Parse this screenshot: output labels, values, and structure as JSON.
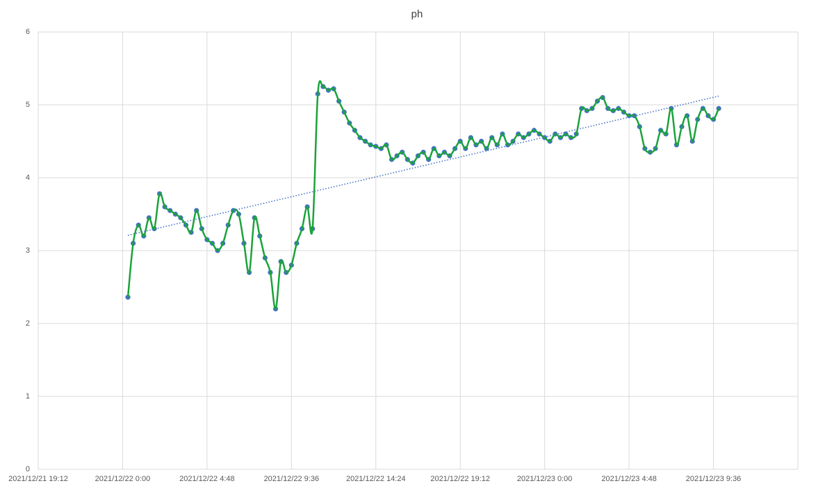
{
  "chart_data": {
    "type": "scatter",
    "title": "ph",
    "x": [
      44552.0125,
      44552.025,
      44552.0375,
      44552.05,
      44552.0625,
      44552.075,
      44552.0875,
      44552.1,
      44552.1125,
      44552.125,
      44552.1375,
      44552.15,
      44552.1625,
      44552.175,
      44552.1875,
      44552.2,
      44552.2125,
      44552.225,
      44552.2375,
      44552.25,
      44552.2625,
      44552.275,
      44552.2875,
      44552.3,
      44552.3125,
      44552.325,
      44552.3375,
      44552.35,
      44552.3625,
      44552.375,
      44552.3875,
      44552.4,
      44552.4125,
      44552.425,
      44552.4375,
      44552.45,
      44552.4625,
      44552.475,
      44552.4875,
      44552.5,
      44552.5125,
      44552.525,
      44552.5375,
      44552.55,
      44552.5625,
      44552.575,
      44552.5875,
      44552.6,
      44552.6125,
      44552.625,
      44552.6375,
      44552.65,
      44552.6625,
      44552.675,
      44552.6875,
      44552.7,
      44552.7125,
      44552.725,
      44552.7375,
      44552.75,
      44552.7625,
      44552.775,
      44552.7875,
      44552.8,
      44552.8125,
      44552.825,
      44552.8375,
      44552.85,
      44552.8625,
      44552.875,
      44552.8875,
      44552.9,
      44552.9125,
      44552.925,
      44552.9375,
      44552.95,
      44552.9625,
      44552.975,
      44552.9875,
      44553,
      44553.0125,
      44553.025,
      44553.0375,
      44553.05,
      44553.0625,
      44553.075,
      44553.0875,
      44553.1,
      44553.1125,
      44553.125,
      44553.1375,
      44553.15,
      44553.1625,
      44553.175,
      44553.1875,
      44553.2,
      44553.2125,
      44553.225,
      44553.2375,
      44553.25,
      44553.2625,
      44553.275,
      44553.2875,
      44553.3,
      44553.3125,
      44553.325,
      44553.3375,
      44553.35,
      44553.3625,
      44553.375,
      44553.3875,
      44553.4,
      44553.4125
    ],
    "series": [
      {
        "name": "ph",
        "color": "#4472c4",
        "line_color": "#1aa33a",
        "values": [
          2.36,
          3.1,
          3.35,
          3.2,
          3.45,
          3.3,
          3.78,
          3.6,
          3.55,
          3.5,
          3.45,
          3.35,
          3.25,
          3.55,
          3.3,
          3.15,
          3.1,
          3.0,
          3.1,
          3.35,
          3.55,
          3.5,
          3.1,
          2.7,
          3.45,
          3.2,
          2.9,
          2.7,
          2.2,
          2.85,
          2.7,
          2.8,
          3.1,
          3.3,
          3.6,
          3.3,
          5.15,
          5.25,
          5.2,
          5.22,
          5.05,
          4.9,
          4.75,
          4.65,
          4.55,
          4.5,
          4.45,
          4.43,
          4.4,
          4.45,
          4.25,
          4.3,
          4.35,
          4.25,
          4.2,
          4.3,
          4.35,
          4.25,
          4.4,
          4.3,
          4.35,
          4.3,
          4.4,
          4.5,
          4.4,
          4.55,
          4.45,
          4.5,
          4.4,
          4.55,
          4.45,
          4.6,
          4.45,
          4.5,
          4.6,
          4.55,
          4.6,
          4.65,
          4.6,
          4.55,
          4.5,
          4.6,
          4.55,
          4.6,
          4.55,
          4.6,
          4.95,
          4.92,
          4.95,
          5.05,
          5.1,
          4.95,
          4.92,
          4.95,
          4.9,
          4.85,
          4.85,
          4.7,
          4.4,
          4.35,
          4.4,
          4.65,
          4.6,
          4.95,
          4.45,
          4.7,
          4.85,
          4.5,
          4.8,
          4.95,
          4.85,
          4.8,
          4.95
        ]
      }
    ],
    "trendline": {
      "values": [
        3.21,
        5.12
      ],
      "color": "#4472c4"
    },
    "xlim": [
      44551.8,
      44553.6
    ],
    "xticks": [
      {
        "value": 44551.8,
        "label": "2021/12/21 19:12"
      },
      {
        "value": 44552,
        "label": "2021/12/22 0:00"
      },
      {
        "value": 44552.2,
        "label": "2021/12/22 4:48"
      },
      {
        "value": 44552.4,
        "label": "2021/12/22 9:36"
      },
      {
        "value": 44552.6,
        "label": "2021/12/22 14:24"
      },
      {
        "value": 44552.8,
        "label": "2021/12/22 19:12"
      },
      {
        "value": 44553,
        "label": "2021/12/23 0:00"
      },
      {
        "value": 44553.2,
        "label": "2021/12/23 4:48"
      },
      {
        "value": 44553.4,
        "label": "2021/12/23 9:36"
      }
    ],
    "ylim": [
      0,
      6
    ],
    "yticks": [
      0,
      1,
      2,
      3,
      4,
      5,
      6
    ],
    "grid": true
  }
}
